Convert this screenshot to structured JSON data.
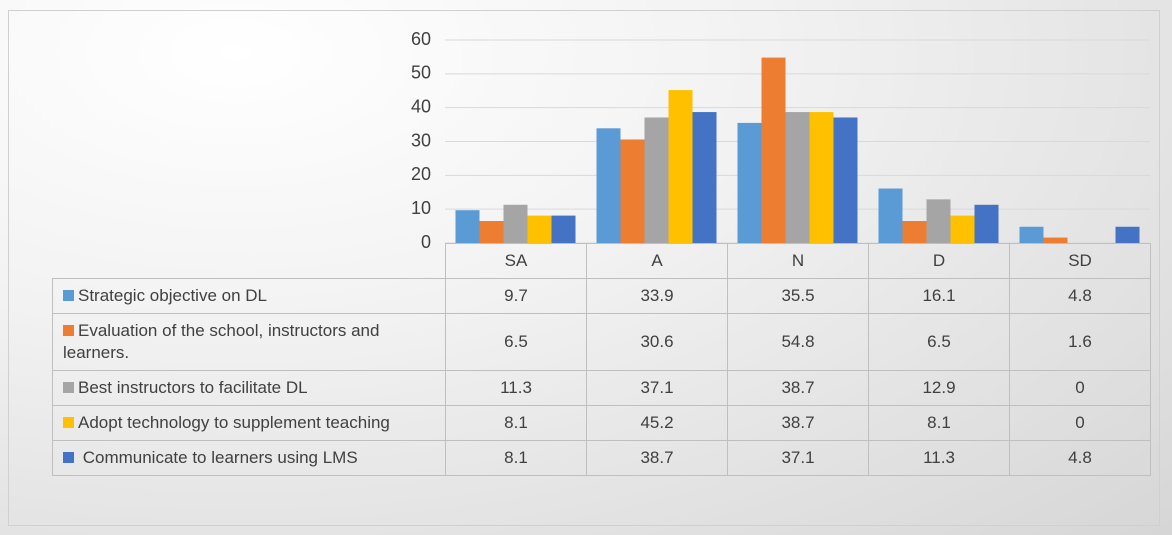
{
  "chart_data": {
    "type": "bar",
    "categories": [
      "SA",
      "A",
      "N",
      "D",
      "SD"
    ],
    "series": [
      {
        "name": "Strategic objective on DL",
        "color": "#5b9bd5",
        "values": [
          9.7,
          33.9,
          35.5,
          16.1,
          4.8
        ]
      },
      {
        "name": "Evaluation of the school, instructors and learners.",
        "color": "#ed7d31",
        "values": [
          6.5,
          30.6,
          54.8,
          6.5,
          1.6
        ]
      },
      {
        "name": "Best instructors to facilitate DL",
        "color": "#a5a5a5",
        "values": [
          11.3,
          37.1,
          38.7,
          12.9,
          0
        ]
      },
      {
        "name": "Adopt technology to supplement teaching",
        "color": "#ffc000",
        "values": [
          8.1,
          45.2,
          38.7,
          8.1,
          0
        ]
      },
      {
        "name": " Communicate to learners using LMS",
        "color": "#4472c4",
        "values": [
          8.1,
          38.7,
          37.1,
          11.3,
          4.8
        ]
      }
    ],
    "ylim": [
      0,
      60
    ],
    "yticks": [
      0,
      10,
      20,
      30,
      40,
      50,
      60
    ],
    "grid": true
  }
}
